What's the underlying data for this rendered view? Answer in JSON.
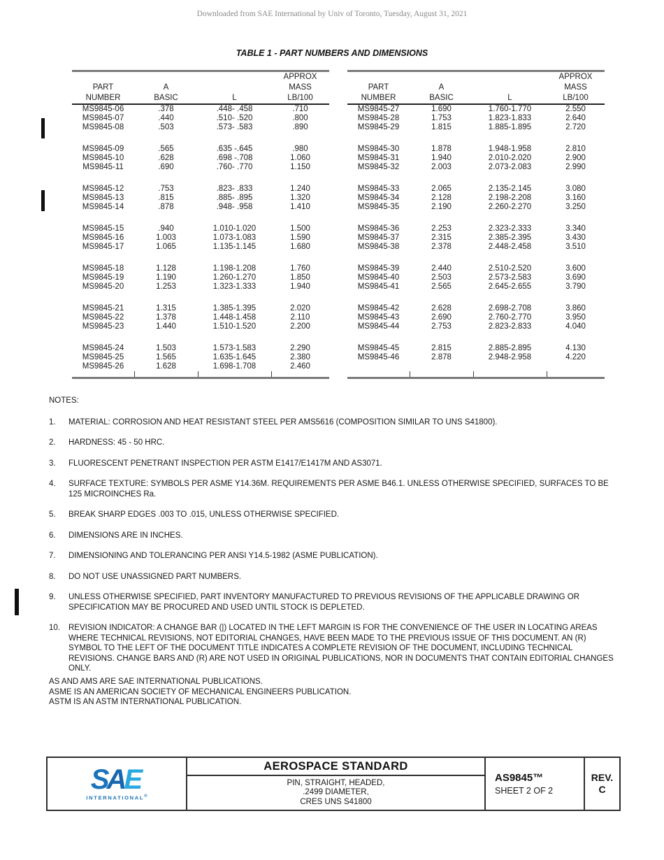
{
  "page": {
    "download_notice": "Downloaded from SAE International by Univ of Toronto, Tuesday, August 31, 2021",
    "table_title": "TABLE 1 - PART NUMBERS AND DIMENSIONS"
  },
  "table": {
    "header_rows": [
      [
        "",
        "",
        "",
        "APPROX"
      ],
      [
        "PART",
        "A",
        "",
        "MASS"
      ],
      [
        "NUMBER",
        "BASIC",
        "L",
        "LB/100"
      ]
    ],
    "left_groups": [
      [
        [
          "MS9845-06",
          ".378",
          ".448- .458",
          ".710"
        ],
        [
          "MS9845-07",
          ".440",
          ".510- .520",
          ".800"
        ],
        [
          "MS9845-08",
          ".503",
          ".573- .583",
          ".890"
        ]
      ],
      [
        [
          "MS9845-09",
          ".565",
          ".635 -.645",
          ".980"
        ],
        [
          "MS9845-10",
          ".628",
          ".698 -.708",
          "1.060"
        ],
        [
          "MS9845-11",
          ".690",
          ".760- .770",
          "1.150"
        ]
      ],
      [
        [
          "MS9845-12",
          ".753",
          ".823- .833",
          "1.240"
        ],
        [
          "MS9845-13",
          ".815",
          ".885- .895",
          "1.320"
        ],
        [
          "MS9845-14",
          ".878",
          ".948- .958",
          "1.410"
        ]
      ],
      [
        [
          "MS9845-15",
          ".940",
          "1.010-1.020",
          "1.500"
        ],
        [
          "MS9845-16",
          "1.003",
          "1.073-1.083",
          "1.590"
        ],
        [
          "MS9845-17",
          "1.065",
          "1.135-1.145",
          "1.680"
        ]
      ],
      [
        [
          "MS9845-18",
          "1.128",
          "1.198-1.208",
          "1.760"
        ],
        [
          "MS9845-19",
          "1.190",
          "1.260-1.270",
          "1.850"
        ],
        [
          "MS9845-20",
          "1.253",
          "1.323-1.333",
          "1.940"
        ]
      ],
      [
        [
          "MS9845-21",
          "1.315",
          "1.385-1.395",
          "2.020"
        ],
        [
          "MS9845-22",
          "1.378",
          "1.448-1.458",
          "2.110"
        ],
        [
          "MS9845-23",
          "1.440",
          "1.510-1.520",
          "2.200"
        ]
      ],
      [
        [
          "MS9845-24",
          "1.503",
          "1.573-1.583",
          "2.290"
        ],
        [
          "MS9845-25",
          "1.565",
          "1.635-1.645",
          "2.380"
        ],
        [
          "MS9845-26",
          "1.628",
          "1.698-1.708",
          "2.460"
        ]
      ]
    ],
    "right_groups": [
      [
        [
          "MS9845-27",
          "1.690",
          "1.760-1.770",
          "2.550"
        ],
        [
          "MS9845-28",
          "1.753",
          "1.823-1.833",
          "2.640"
        ],
        [
          "MS9845-29",
          "1.815",
          "1.885-1.895",
          "2.720"
        ]
      ],
      [
        [
          "MS9845-30",
          "1.878",
          "1.948-1.958",
          "2.810"
        ],
        [
          "MS9845-31",
          "1.940",
          "2.010-2.020",
          "2.900"
        ],
        [
          "MS9845-32",
          "2.003",
          "2.073-2.083",
          "2.990"
        ]
      ],
      [
        [
          "MS9845-33",
          "2.065",
          "2.135-2.145",
          "3.080"
        ],
        [
          "MS9845-34",
          "2.128",
          "2.198-2.208",
          "3.160"
        ],
        [
          "MS9845-35",
          "2.190",
          "2.260-2.270",
          "3.250"
        ]
      ],
      [
        [
          "MS9845-36",
          "2.253",
          "2.323-2.333",
          "3.340"
        ],
        [
          "MS9845-37",
          "2.315",
          "2.385-2.395",
          "3.430"
        ],
        [
          "MS9845-38",
          "2.378",
          "2.448-2.458",
          "3.510"
        ]
      ],
      [
        [
          "MS9845-39",
          "2.440",
          "2.510-2.520",
          "3.600"
        ],
        [
          "MS9845-40",
          "2.503",
          "2.573-2.583",
          "3.690"
        ],
        [
          "MS9845-41",
          "2.565",
          "2.645-2.655",
          "3.790"
        ]
      ],
      [
        [
          "MS9845-42",
          "2.628",
          "2.698-2.708",
          "3.860"
        ],
        [
          "MS9845-43",
          "2.690",
          "2.760-2.770",
          "3.950"
        ],
        [
          "MS9845-44",
          "2.753",
          "2.823-2.833",
          "4.040"
        ]
      ],
      [
        [
          "MS9845-45",
          "2.815",
          "2.885-2.895",
          "4.130"
        ],
        [
          "MS9845-46",
          "2.878",
          "2.948-2.958",
          "4.220"
        ]
      ]
    ],
    "right_pad_rows": 1
  },
  "notes": {
    "label": "NOTES:",
    "items": [
      {
        "num": "1.",
        "text": "MATERIAL: CORROSION AND HEAT RESISTANT STEEL PER AMS5616 (COMPOSITION SIMILAR TO UNS S41800)."
      },
      {
        "num": "2.",
        "text": "HARDNESS: 45 - 50 HRC."
      },
      {
        "num": "3.",
        "text": "FLUORESCENT PENETRANT INSPECTION PER ASTM E1417/E1417M AND AS3071."
      },
      {
        "num": "4.",
        "text": "SURFACE TEXTURE: SYMBOLS PER ASME Y14.36M. REQUIREMENTS PER ASME B46.1. UNLESS OTHERWISE SPECIFIED, SURFACES TO BE 125 MICROINCHES Ra."
      },
      {
        "num": "5.",
        "text": "BREAK SHARP EDGES .003 TO .015, UNLESS OTHERWISE SPECIFIED."
      },
      {
        "num": "6.",
        "text": "DIMENSIONS ARE IN INCHES."
      },
      {
        "num": "7.",
        "text": "DIMENSIONING AND TOLERANCING PER ANSI Y14.5-1982 (ASME PUBLICATION)."
      },
      {
        "num": "8.",
        "text": "DO NOT USE UNASSIGNED PART NUMBERS."
      },
      {
        "num": "9.",
        "text": "UNLESS OTHERWISE SPECIFIED, PART INVENTORY MANUFACTURED TO PREVIOUS REVISIONS OF THE APPLICABLE DRAWING OR SPECIFICATION MAY BE PROCURED AND USED UNTIL STOCK IS DEPLETED."
      },
      {
        "num": "10.",
        "text": "REVISION INDICATOR: A CHANGE BAR (|) LOCATED IN THE LEFT MARGIN IS FOR THE CONVENIENCE OF THE USER IN LOCATING AREAS WHERE TECHNICAL REVISIONS, NOT EDITORIAL CHANGES, HAVE BEEN MADE TO THE PREVIOUS ISSUE OF THIS DOCUMENT. AN (R) SYMBOL TO THE LEFT OF THE DOCUMENT TITLE INDICATES A COMPLETE REVISION OF THE DOCUMENT, INCLUDING TECHNICAL REVISIONS. CHANGE BARS AND (R) ARE NOT USED IN ORIGINAL PUBLICATIONS, NOR IN DOCUMENTS THAT CONTAIN EDITORIAL CHANGES ONLY."
      }
    ]
  },
  "footnotes": [
    "AS AND AMS ARE SAE INTERNATIONAL PUBLICATIONS.",
    "ASME IS AN AMERICAN SOCIETY OF MECHANICAL ENGINEERS PUBLICATION.",
    "ASTM IS AN ASTM INTERNATIONAL PUBLICATION."
  ],
  "title_block": {
    "logo_letters": [
      "S",
      "A",
      "E"
    ],
    "logo_sub": "INTERNATIONAL",
    "logo_reg": "®",
    "doc_type": "AEROSPACE STANDARD",
    "doc_title_lines": [
      "PIN, STRAIGHT, HEADED,",
      ".2499 DIAMETER,",
      "CRES UNS S41800"
    ],
    "doc_number": "AS9845™",
    "sheet": "SHEET 2 OF 2",
    "rev_label": "REV.",
    "rev_value": "C"
  },
  "colors": {
    "logo_blue_s": "#1B74BB",
    "logo_blue_a": "#1767AE",
    "logo_blue_e": "#29A9E0",
    "logo_sub_blue": "#1B74BB"
  }
}
